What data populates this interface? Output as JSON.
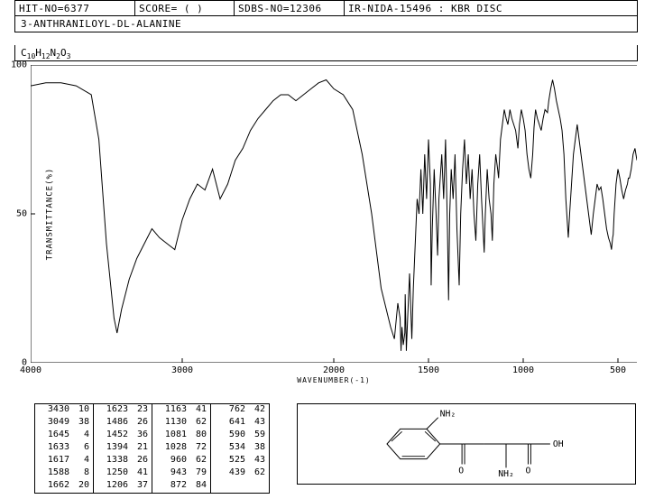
{
  "header": {
    "hit_no": "HIT-NO=6377",
    "score": "SCORE=  (  )",
    "sdbs_no": "SDBS-NO=12306",
    "ir_info": "IR-NIDA-15496 : KBR DISC"
  },
  "compound_name": "3-ANTHRANILOYL-DL-ALANINE",
  "formula": {
    "parts": [
      "C",
      "10",
      "H",
      "12",
      "N",
      "2",
      "O",
      "3"
    ]
  },
  "chart": {
    "type": "line",
    "y_label": "TRANSMITTANCE(%)",
    "x_label": "WAVENUMBER(-1)",
    "y_ticks": [
      0,
      50,
      100
    ],
    "x_ticks": [
      4000,
      3000,
      2000,
      1500,
      1000,
      500
    ],
    "line_color": "#000000",
    "background_color": "#ffffff",
    "spectrum": [
      [
        4000,
        93
      ],
      [
        3900,
        94
      ],
      [
        3800,
        94
      ],
      [
        3700,
        93
      ],
      [
        3600,
        90
      ],
      [
        3550,
        75
      ],
      [
        3500,
        40
      ],
      [
        3450,
        15
      ],
      [
        3430,
        10
      ],
      [
        3400,
        18
      ],
      [
        3350,
        28
      ],
      [
        3300,
        35
      ],
      [
        3250,
        40
      ],
      [
        3200,
        45
      ],
      [
        3150,
        42
      ],
      [
        3100,
        40
      ],
      [
        3049,
        38
      ],
      [
        3000,
        48
      ],
      [
        2950,
        55
      ],
      [
        2900,
        60
      ],
      [
        2850,
        58
      ],
      [
        2800,
        65
      ],
      [
        2750,
        55
      ],
      [
        2700,
        60
      ],
      [
        2650,
        68
      ],
      [
        2600,
        72
      ],
      [
        2550,
        78
      ],
      [
        2500,
        82
      ],
      [
        2450,
        85
      ],
      [
        2400,
        88
      ],
      [
        2350,
        90
      ],
      [
        2300,
        90
      ],
      [
        2250,
        88
      ],
      [
        2200,
        90
      ],
      [
        2150,
        92
      ],
      [
        2100,
        94
      ],
      [
        2050,
        95
      ],
      [
        2000,
        92
      ],
      [
        1950,
        90
      ],
      [
        1900,
        85
      ],
      [
        1850,
        70
      ],
      [
        1800,
        50
      ],
      [
        1750,
        25
      ],
      [
        1700,
        12
      ],
      [
        1680,
        8
      ],
      [
        1662,
        20
      ],
      [
        1650,
        15
      ],
      [
        1645,
        4
      ],
      [
        1640,
        12
      ],
      [
        1633,
        6
      ],
      [
        1625,
        10
      ],
      [
        1623,
        23
      ],
      [
        1618,
        8
      ],
      [
        1617,
        4
      ],
      [
        1610,
        15
      ],
      [
        1600,
        30
      ],
      [
        1588,
        8
      ],
      [
        1580,
        25
      ],
      [
        1570,
        40
      ],
      [
        1560,
        55
      ],
      [
        1550,
        50
      ],
      [
        1540,
        65
      ],
      [
        1530,
        50
      ],
      [
        1520,
        70
      ],
      [
        1510,
        55
      ],
      [
        1500,
        75
      ],
      [
        1490,
        60
      ],
      [
        1486,
        26
      ],
      [
        1480,
        45
      ],
      [
        1470,
        65
      ],
      [
        1460,
        50
      ],
      [
        1452,
        36
      ],
      [
        1445,
        55
      ],
      [
        1440,
        60
      ],
      [
        1430,
        70
      ],
      [
        1420,
        55
      ],
      [
        1410,
        75
      ],
      [
        1400,
        45
      ],
      [
        1394,
        21
      ],
      [
        1388,
        50
      ],
      [
        1380,
        65
      ],
      [
        1370,
        55
      ],
      [
        1360,
        70
      ],
      [
        1350,
        45
      ],
      [
        1338,
        26
      ],
      [
        1330,
        50
      ],
      [
        1320,
        65
      ],
      [
        1310,
        75
      ],
      [
        1300,
        60
      ],
      [
        1290,
        70
      ],
      [
        1280,
        55
      ],
      [
        1270,
        65
      ],
      [
        1260,
        50
      ],
      [
        1250,
        41
      ],
      [
        1240,
        60
      ],
      [
        1230,
        70
      ],
      [
        1220,
        55
      ],
      [
        1206,
        37
      ],
      [
        1200,
        50
      ],
      [
        1190,
        65
      ],
      [
        1180,
        55
      ],
      [
        1170,
        50
      ],
      [
        1163,
        41
      ],
      [
        1155,
        60
      ],
      [
        1145,
        70
      ],
      [
        1135,
        65
      ],
      [
        1130,
        62
      ],
      [
        1120,
        75
      ],
      [
        1110,
        80
      ],
      [
        1100,
        85
      ],
      [
        1090,
        82
      ],
      [
        1081,
        80
      ],
      [
        1070,
        85
      ],
      [
        1060,
        82
      ],
      [
        1050,
        80
      ],
      [
        1040,
        78
      ],
      [
        1028,
        72
      ],
      [
        1020,
        80
      ],
      [
        1010,
        85
      ],
      [
        1000,
        82
      ],
      [
        990,
        78
      ],
      [
        980,
        70
      ],
      [
        970,
        65
      ],
      [
        960,
        62
      ],
      [
        950,
        70
      ],
      [
        943,
        79
      ],
      [
        935,
        85
      ],
      [
        925,
        82
      ],
      [
        915,
        80
      ],
      [
        905,
        78
      ],
      [
        895,
        82
      ],
      [
        885,
        85
      ],
      [
        872,
        84
      ],
      [
        865,
        88
      ],
      [
        855,
        92
      ],
      [
        845,
        95
      ],
      [
        835,
        92
      ],
      [
        825,
        88
      ],
      [
        815,
        85
      ],
      [
        805,
        82
      ],
      [
        795,
        78
      ],
      [
        785,
        70
      ],
      [
        775,
        55
      ],
      [
        762,
        42
      ],
      [
        755,
        50
      ],
      [
        745,
        60
      ],
      [
        735,
        70
      ],
      [
        725,
        75
      ],
      [
        715,
        80
      ],
      [
        705,
        75
      ],
      [
        695,
        70
      ],
      [
        685,
        65
      ],
      [
        675,
        60
      ],
      [
        665,
        55
      ],
      [
        655,
        50
      ],
      [
        641,
        43
      ],
      [
        630,
        50
      ],
      [
        620,
        55
      ],
      [
        610,
        60
      ],
      [
        600,
        58
      ],
      [
        590,
        59
      ],
      [
        580,
        55
      ],
      [
        570,
        50
      ],
      [
        560,
        45
      ],
      [
        550,
        42
      ],
      [
        540,
        40
      ],
      [
        534,
        38
      ],
      [
        528,
        42
      ],
      [
        525,
        43
      ],
      [
        520,
        50
      ],
      [
        510,
        60
      ],
      [
        500,
        65
      ],
      [
        490,
        62
      ],
      [
        480,
        58
      ],
      [
        470,
        55
      ],
      [
        460,
        58
      ],
      [
        450,
        60
      ],
      [
        445,
        62
      ],
      [
        439,
        62
      ],
      [
        430,
        65
      ],
      [
        420,
        70
      ],
      [
        410,
        72
      ],
      [
        405,
        70
      ],
      [
        400,
        68
      ]
    ]
  },
  "peak_table": [
    [
      [
        "3430",
        "10"
      ],
      [
        "3049",
        "38"
      ],
      [
        "1645",
        " 4"
      ],
      [
        "1633",
        " 6"
      ],
      [
        "1617",
        " 4"
      ],
      [
        "1588",
        " 8"
      ],
      [
        "1662",
        "20"
      ]
    ],
    [
      [
        "1623",
        "23"
      ],
      [
        "1486",
        "26"
      ],
      [
        "1452",
        "36"
      ],
      [
        "1394",
        "21"
      ],
      [
        "1338",
        "26"
      ],
      [
        "1250",
        "41"
      ],
      [
        "1206",
        "37"
      ]
    ],
    [
      [
        "1163",
        "41"
      ],
      [
        "1130",
        "62"
      ],
      [
        "1081",
        "80"
      ],
      [
        "1028",
        "72"
      ],
      [
        " 960",
        "62"
      ],
      [
        " 943",
        "79"
      ],
      [
        " 872",
        "84"
      ]
    ],
    [
      [
        " 762",
        "42"
      ],
      [
        " 641",
        "43"
      ],
      [
        " 590",
        "59"
      ],
      [
        " 534",
        "38"
      ],
      [
        " 525",
        "43"
      ],
      [
        " 439",
        "62"
      ],
      [
        "",
        ""
      ]
    ]
  ],
  "structure_labels": {
    "nh2": "NH₂",
    "nh2_2": "NH₂",
    "o1": "O",
    "o2": "O",
    "oh": "OH"
  }
}
